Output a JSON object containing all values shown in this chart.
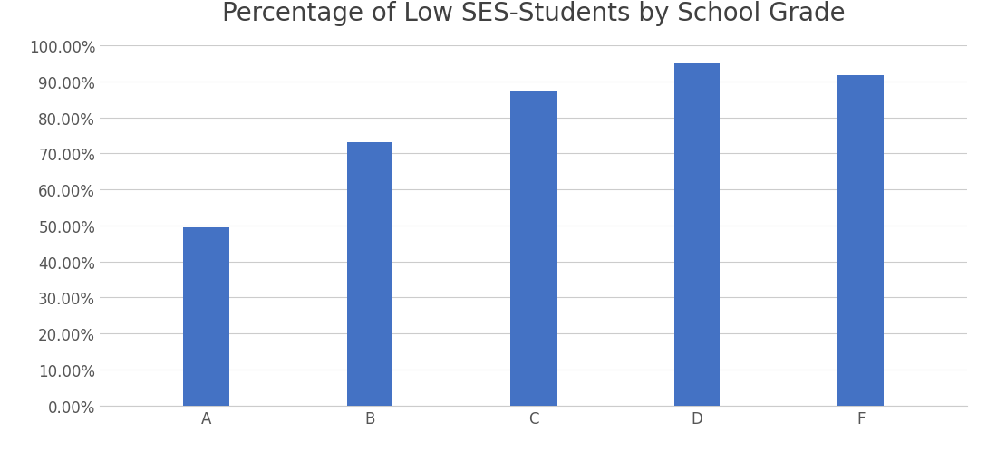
{
  "title": "Percentage of Low SES-Students by School Grade",
  "categories": [
    "A",
    "B",
    "C",
    "D",
    "F"
  ],
  "values": [
    0.495,
    0.73,
    0.875,
    0.95,
    0.917
  ],
  "bar_color": "#4472C4",
  "ylim": [
    0,
    1.0
  ],
  "yticks": [
    0.0,
    0.1,
    0.2,
    0.3,
    0.4,
    0.5,
    0.6,
    0.7,
    0.8,
    0.9,
    1.0
  ],
  "ytick_labels": [
    "0.00%",
    "10.00%",
    "20.00%",
    "30.00%",
    "40.00%",
    "50.00%",
    "60.00%",
    "70.00%",
    "80.00%",
    "90.00%",
    "100.00%"
  ],
  "title_fontsize": 20,
  "tick_fontsize": 12,
  "background_color": "#ffffff",
  "grid_color": "#cccccc",
  "bar_width": 0.28,
  "xlim_left": -0.65,
  "xlim_right": 4.65
}
